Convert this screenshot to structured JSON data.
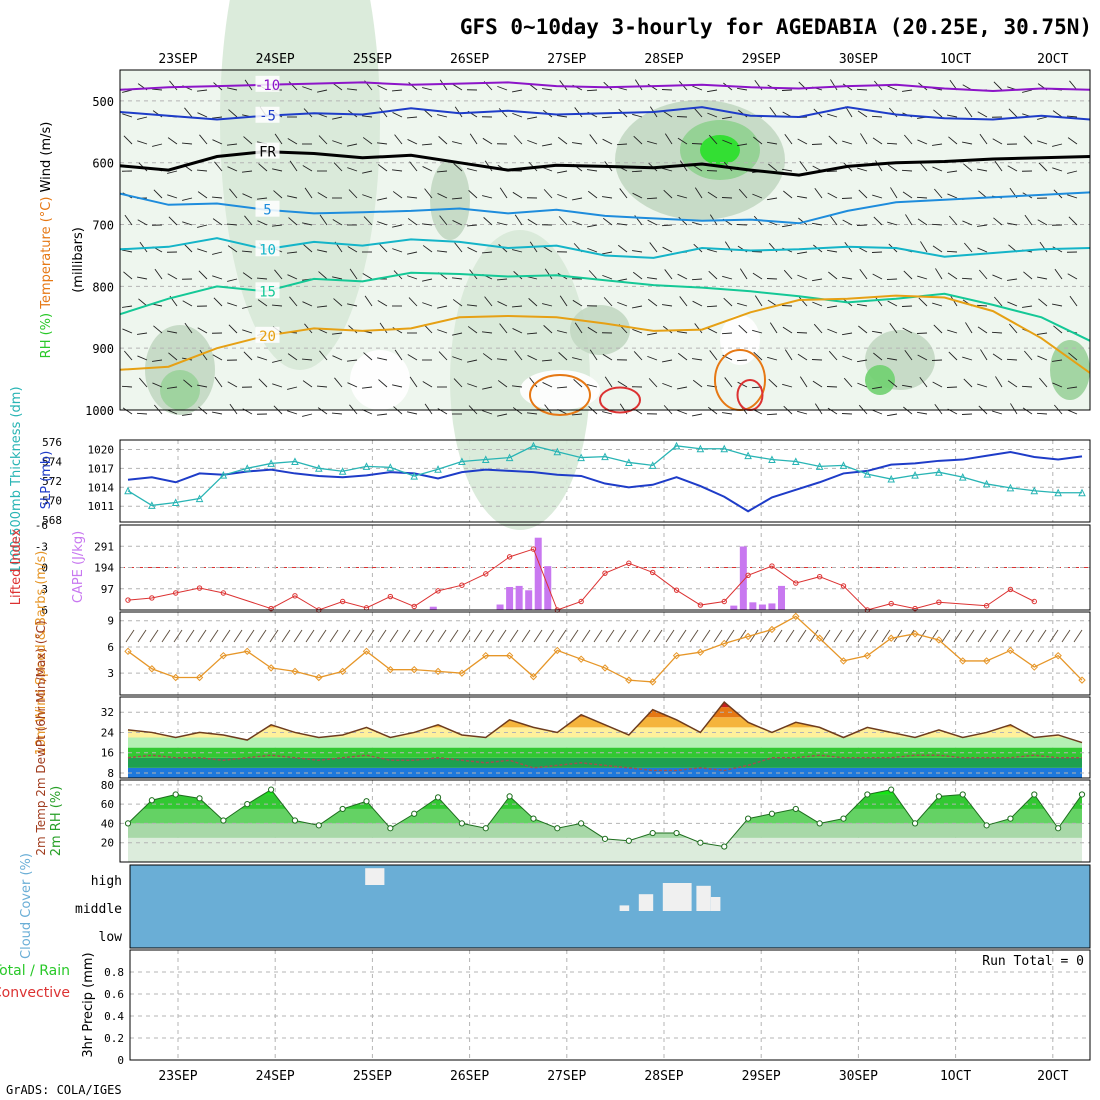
{
  "title": "GFS 0~10day 3-hourly for AGEDABIA (20.25E, 30.75N)",
  "footer": "GrADS: COLA/IGES",
  "run_total": "Run Total = 0",
  "colors": {
    "grid": "#b4b4b4",
    "slp": "#1e3cc8",
    "thick": "#28b4b4",
    "li": "#dc3232",
    "cape": "#c878f0",
    "wind": "#e69628",
    "rh_fill": "#28c828",
    "cloud": "#6aaed6",
    "temp_hi": "#e67814",
    "dew": "#a05050"
  },
  "chart_data": [
    {
      "type": "heatmap",
      "name": "pressure-time cross-section",
      "ylabel_parts": [
        "RH (%)",
        "Temperature (°C)",
        "Wind (m/s)"
      ],
      "ylabel2": "(millibars)",
      "x_top_labels": [
        "23SEP",
        "24SEP",
        "25SEP",
        "26SEP",
        "27SEP",
        "28SEP",
        "29SEP",
        "30SEP",
        "1OCT",
        "2OCT"
      ],
      "yticks": [
        500,
        600,
        700,
        800,
        900,
        1000
      ],
      "ylim": [
        1000,
        450
      ],
      "isotherms": [
        {
          "label": "-10",
          "color": "#8c14c8",
          "p": [
            482,
            478,
            476,
            474,
            472,
            470,
            474,
            472,
            470,
            476,
            478,
            476,
            474,
            478,
            480,
            476,
            474,
            480,
            484,
            480,
            482
          ]
        },
        {
          "label": "-5",
          "color": "#1e3cc8",
          "p": [
            518,
            524,
            530,
            524,
            520,
            522,
            512,
            520,
            516,
            522,
            520,
            518,
            510,
            524,
            526,
            510,
            522,
            528,
            530,
            524,
            530
          ]
        },
        {
          "label": "FR",
          "color": "#000000",
          "p": [
            605,
            612,
            590,
            582,
            585,
            592,
            588,
            600,
            612,
            604,
            606,
            608,
            602,
            612,
            620,
            606,
            600,
            598,
            594,
            592,
            590
          ]
        },
        {
          "label": "5",
          "color": "#1e8cdc",
          "p": [
            650,
            668,
            666,
            676,
            682,
            680,
            678,
            674,
            682,
            676,
            686,
            690,
            694,
            692,
            698,
            678,
            664,
            660,
            656,
            652,
            648
          ]
        },
        {
          "label": "10",
          "color": "#14b4c8",
          "p": [
            740,
            736,
            722,
            740,
            728,
            734,
            724,
            728,
            738,
            734,
            750,
            754,
            738,
            742,
            740,
            736,
            738,
            752,
            746,
            740,
            738
          ]
        },
        {
          "label": "15",
          "color": "#14c896",
          "p": [
            845,
            820,
            800,
            808,
            788,
            792,
            778,
            780,
            784,
            782,
            790,
            798,
            802,
            808,
            816,
            826,
            820,
            812,
            830,
            850,
            888
          ]
        },
        {
          "label": "20",
          "color": "#e6a014",
          "p": [
            935,
            930,
            900,
            880,
            868,
            872,
            868,
            850,
            848,
            850,
            860,
            872,
            870,
            842,
            822,
            820,
            815,
            818,
            840,
            884,
            940
          ]
        }
      ]
    },
    {
      "type": "line",
      "name": "SLP and 1000-500mb thickness",
      "ylabel_left": "1000-500mb Thickness (dm)",
      "ylabel_right": "SLP (mb)",
      "thick_ticks": [
        568,
        570,
        572,
        574,
        576
      ],
      "slp_ticks": [
        1011,
        1014,
        1017,
        1020
      ],
      "thick_lim": [
        567.8,
        576.2
      ],
      "slp_lim": [
        1008.5,
        1021.5
      ],
      "x_days": [
        0,
        0.25,
        0.5,
        0.75,
        1,
        1.25,
        1.5,
        1.75,
        2,
        2.25,
        2.5,
        2.75,
        3,
        3.25,
        3.5,
        3.75,
        4,
        4.25,
        4.5,
        4.75,
        5,
        5.25,
        5.5,
        5.75,
        6,
        6.25,
        6.5,
        6.75,
        7,
        7.25,
        7.5,
        7.75,
        8,
        8.25,
        8.5,
        8.75,
        9,
        9.25,
        9.5,
        9.75,
        10
      ],
      "slp": [
        1015.2,
        1015.6,
        1014.8,
        1016.2,
        1016.0,
        1016.5,
        1016.8,
        1016.2,
        1015.8,
        1015.6,
        1015.9,
        1016.4,
        1016.2,
        1015.4,
        1016.4,
        1016.8,
        1016.6,
        1016.4,
        1016.0,
        1015.8,
        1014.6,
        1014.0,
        1014.4,
        1015.6,
        1014.2,
        1012.5,
        1010.2,
        1012.4,
        1013.6,
        1014.8,
        1016.2,
        1016.6,
        1017.6,
        1017.8,
        1018.2,
        1018.4,
        1019.0,
        1019.6,
        1018.8,
        1018.4,
        1018.9
      ],
      "thickness": [
        571.0,
        569.5,
        569.8,
        570.2,
        572.6,
        573.3,
        573.8,
        574.0,
        573.3,
        573.0,
        573.5,
        573.4,
        572.5,
        573.2,
        574.0,
        574.2,
        574.4,
        575.6,
        575.0,
        574.4,
        574.5,
        573.9,
        573.6,
        575.6,
        575.3,
        575.3,
        574.6,
        574.2,
        574.0,
        573.5,
        573.6,
        572.7,
        572.2,
        572.6,
        572.9,
        572.4,
        571.7,
        571.3,
        571.0,
        570.8,
        570.8
      ]
    },
    {
      "type": "bar",
      "name": "Lifted Index and CAPE",
      "ylabel_left": "Lifted Index",
      "ylabel_right": "CAPE (J/kg)",
      "li_ticks": [
        -6,
        -3,
        0,
        3,
        6
      ],
      "cape_ticks": [
        97,
        194,
        291
      ],
      "li_lim": [
        -6,
        6
      ],
      "cape_lim": [
        0,
        388
      ],
      "li_x": [
        0,
        0.25,
        0.5,
        0.75,
        1,
        1.5,
        1.75,
        2,
        2.25,
        2.5,
        2.75,
        3,
        3.25,
        3.5,
        3.75,
        4,
        4.25,
        4.5,
        4.75,
        5,
        5.25,
        5.5,
        5.75,
        6,
        6.25,
        6.5,
        6.75,
        7,
        7.25,
        7.5,
        7.75,
        8,
        8.25,
        8.5,
        9,
        9.25,
        9.5
      ],
      "li": [
        4.6,
        4.3,
        3.6,
        2.9,
        3.6,
        5.8,
        4.0,
        6.0,
        4.8,
        5.7,
        4.1,
        5.5,
        3.3,
        2.5,
        0.9,
        -1.5,
        -2.6,
        6.0,
        4.8,
        0.8,
        -0.6,
        0.7,
        3.2,
        5.3,
        4.8,
        1.1,
        -0.2,
        2.2,
        1.3,
        2.6,
        6.0,
        5.1,
        5.8,
        4.9,
        5.4,
        3.1,
        4.8
      ],
      "cape_x": [
        3.2,
        3.9,
        4.0,
        4.1,
        4.2,
        4.3,
        4.4,
        6.35,
        6.45,
        6.55,
        6.65,
        6.75,
        6.85
      ],
      "cape": [
        15,
        25,
        105,
        110,
        90,
        330,
        200,
        20,
        290,
        35,
        25,
        30,
        110
      ]
    },
    {
      "type": "line",
      "name": "10m wind speed",
      "ylabel": "10m Wind Speed & Barbs (m/s)",
      "yticks": [
        3,
        6,
        9
      ],
      "ylim": [
        0.5,
        10
      ],
      "x_days": [
        0,
        0.25,
        0.5,
        0.75,
        1,
        1.25,
        1.5,
        1.75,
        2,
        2.25,
        2.5,
        2.75,
        3,
        3.25,
        3.5,
        3.75,
        4,
        4.25,
        4.5,
        4.75,
        5,
        5.25,
        5.5,
        5.75,
        6,
        6.25,
        6.5,
        6.75,
        7,
        7.25,
        7.5,
        7.75,
        8,
        8.25,
        8.5,
        8.75,
        9,
        9.25,
        9.5,
        9.75,
        10
      ],
      "speed": [
        5.5,
        3.5,
        2.5,
        2.5,
        5.0,
        5.5,
        3.6,
        3.2,
        2.5,
        3.2,
        5.5,
        3.4,
        3.4,
        3.2,
        3.0,
        5.0,
        5.0,
        2.6,
        5.6,
        4.6,
        3.6,
        2.2,
        2.0,
        5.0,
        5.4,
        6.4,
        7.2,
        8.0,
        9.5,
        7.0,
        4.4,
        5.0,
        7.0,
        7.5,
        6.8,
        4.4,
        4.4,
        5.6,
        3.7,
        5.0,
        2.2
      ]
    },
    {
      "type": "area",
      "name": "2m temperature and dewpoint",
      "ylabel": "2m Temp 2m DewPt (6hr Min/Max) (°C)",
      "yticks": [
        8,
        16,
        24,
        32
      ],
      "ylim": [
        6,
        38
      ],
      "x_days": [
        0,
        0.25,
        0.5,
        0.75,
        1,
        1.25,
        1.5,
        1.75,
        2,
        2.25,
        2.5,
        2.75,
        3,
        3.25,
        3.5,
        3.75,
        4,
        4.25,
        4.5,
        4.75,
        5,
        5.25,
        5.5,
        5.75,
        6,
        6.25,
        6.5,
        6.75,
        7,
        7.25,
        7.5,
        7.75,
        8,
        8.25,
        8.5,
        8.75,
        9,
        9.25,
        9.5,
        9.75,
        10
      ],
      "temp": [
        25,
        24,
        22,
        24,
        23,
        21,
        27,
        24,
        22,
        23,
        26,
        22,
        24,
        27,
        23,
        22,
        29,
        26,
        24,
        31,
        27,
        23,
        33,
        29,
        24,
        36,
        28,
        24,
        28,
        26,
        22,
        26,
        24,
        22,
        25,
        22,
        24,
        27,
        22,
        23,
        20
      ],
      "dew": [
        14,
        15,
        14,
        14,
        13,
        14,
        15,
        14,
        13,
        14,
        15,
        13,
        13,
        14,
        13,
        12,
        13,
        10,
        11,
        12,
        11,
        10,
        9,
        9,
        10,
        9,
        11,
        14,
        14,
        15,
        14,
        14,
        14,
        15,
        15,
        14,
        14,
        14,
        15,
        14,
        14
      ]
    },
    {
      "type": "area",
      "name": "2m RH",
      "ylabel": "2m RH (%)",
      "yticks": [
        20,
        40,
        60,
        80
      ],
      "ylim": [
        0,
        85
      ],
      "x_days": [
        0,
        0.25,
        0.5,
        0.75,
        1,
        1.25,
        1.5,
        1.75,
        2,
        2.25,
        2.5,
        2.75,
        3,
        3.25,
        3.5,
        3.75,
        4,
        4.25,
        4.5,
        4.75,
        5,
        5.25,
        5.5,
        5.75,
        6,
        6.25,
        6.5,
        6.75,
        7,
        7.25,
        7.5,
        7.75,
        8,
        8.25,
        8.5,
        8.75,
        9,
        9.25,
        9.5,
        9.75,
        10
      ],
      "rh": [
        40,
        64,
        70,
        66,
        43,
        60,
        75,
        43,
        38,
        55,
        63,
        35,
        50,
        67,
        40,
        35,
        68,
        45,
        35,
        40,
        24,
        22,
        30,
        30,
        20,
        16,
        45,
        50,
        55,
        40,
        45,
        70,
        75,
        40,
        68,
        70,
        38,
        45,
        70,
        35,
        70
      ]
    },
    {
      "type": "heatmap",
      "name": "cloud cover",
      "ylabel": "Cloud Cover (%)",
      "levels": [
        "high",
        "middle",
        "low"
      ],
      "clear_patches": [
        {
          "level": "high",
          "x0": 2.45,
          "x1": 2.65,
          "fraction": 0.6
        },
        {
          "level": "middle",
          "x0": 5.1,
          "x1": 5.2,
          "fraction": 0.2
        },
        {
          "level": "middle",
          "x0": 5.3,
          "x1": 5.45,
          "fraction": 0.6
        },
        {
          "level": "middle",
          "x0": 5.55,
          "x1": 5.85,
          "fraction": 1.0
        },
        {
          "level": "middle",
          "x0": 5.9,
          "x1": 6.05,
          "fraction": 0.9
        },
        {
          "level": "middle",
          "x0": 6.05,
          "x1": 6.15,
          "fraction": 0.5
        }
      ]
    },
    {
      "type": "bar",
      "name": "3hr precipitation",
      "legend": [
        "Total / Rain",
        "Convective"
      ],
      "ylabel": "3hr Precip (mm)",
      "yticks": [
        0,
        0.2,
        0.4,
        0.6,
        0.8
      ],
      "ylim": [
        0,
        1
      ],
      "values": []
    }
  ]
}
